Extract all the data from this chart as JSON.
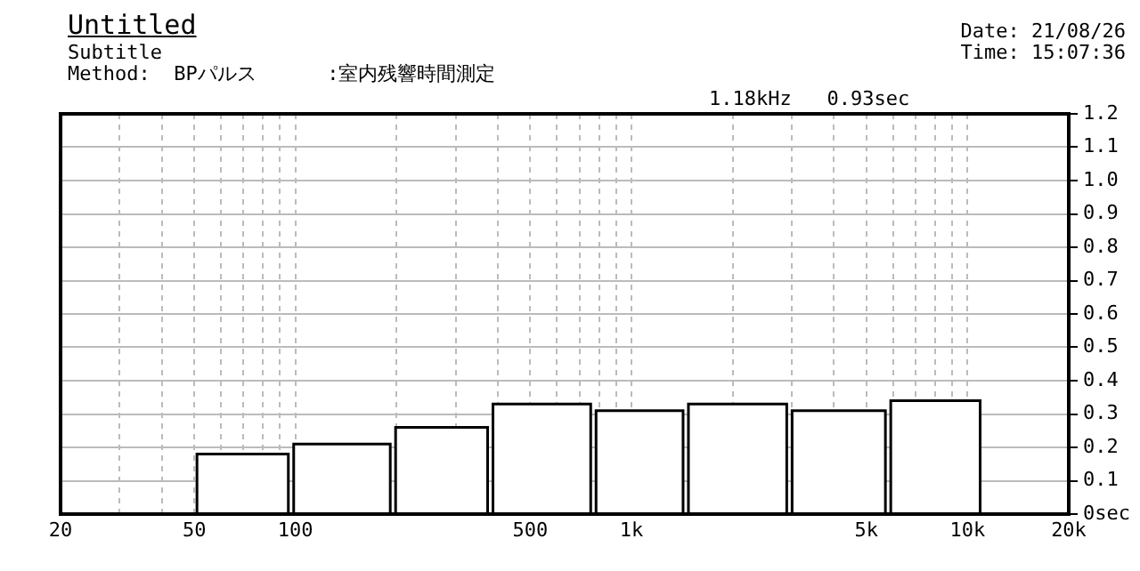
{
  "chart_data": {
    "type": "histogram",
    "title": "Untitled",
    "subtitle": "Subtitle",
    "annotations": [
      "Method:  BPパルス      :室内残響時間測定",
      "Date: 21/08/26",
      "Time: 15:07:36",
      "1.18kHz   0.93sec"
    ],
    "bins": [
      50,
      97,
      195,
      380,
      770,
      1450,
      2950,
      5800,
      11100
    ],
    "values": [
      0.18,
      0.21,
      0.26,
      0.33,
      0.31,
      0.33,
      0.31,
      0.34
    ],
    "color": "#ffffff",
    "xlim": [
      20,
      20000
    ],
    "xticks": [
      20,
      {
        "value": 30,
        "label": null
      },
      {
        "value": 40,
        "label": null
      },
      50,
      {
        "value": 60,
        "label": null
      },
      {
        "value": 70,
        "label": null
      },
      {
        "value": 80,
        "label": null
      },
      {
        "value": 90,
        "label": null
      },
      100,
      {
        "value": 200,
        "label": null
      },
      {
        "value": 300,
        "label": null
      },
      {
        "value": 400,
        "label": null
      },
      500,
      {
        "value": 600,
        "label": null
      },
      {
        "value": 700,
        "label": null
      },
      {
        "value": 800,
        "label": null
      },
      {
        "value": 900,
        "label": null
      },
      {
        "value": 1000,
        "label": "1k"
      },
      {
        "value": 2000,
        "label": null
      },
      {
        "value": 3000,
        "label": null
      },
      {
        "value": 4000,
        "label": null
      },
      {
        "value": 5000,
        "label": "5k"
      },
      {
        "value": 6000,
        "label": null
      },
      {
        "value": 7000,
        "label": null
      },
      {
        "value": 8000,
        "label": null
      },
      {
        "value": 9000,
        "label": null
      },
      {
        "value": 10000,
        "label": "10k"
      },
      {
        "value": 20000,
        "label": "20k"
      }
    ],
    "log": "x",
    "ylim": [
      0,
      1.2
    ],
    "yticks": [
      {
        "value": 0,
        "label": "0sec"
      },
      0.1,
      0.2,
      0.3,
      0.4,
      0.5,
      0.6,
      0.7,
      0.8,
      0.9,
      {
        "value": 1,
        "label": "1.0"
      },
      1.1,
      1.2
    ],
    "grid": true
  }
}
